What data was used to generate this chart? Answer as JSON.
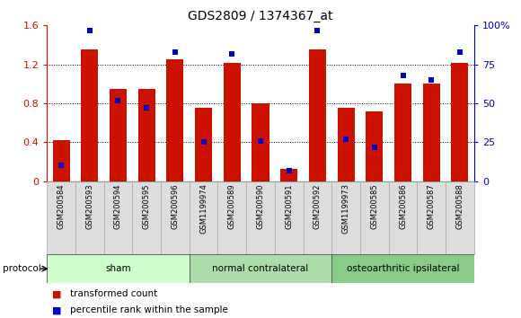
{
  "title": "GDS2809 / 1374367_at",
  "samples": [
    "GSM200584",
    "GSM200593",
    "GSM200594",
    "GSM200595",
    "GSM200596",
    "GSM1199974",
    "GSM200589",
    "GSM200590",
    "GSM200591",
    "GSM200592",
    "GSM1199973",
    "GSM200585",
    "GSM200586",
    "GSM200587",
    "GSM200588"
  ],
  "transformed_count": [
    0.42,
    1.35,
    0.95,
    0.95,
    1.25,
    0.75,
    1.22,
    0.8,
    0.13,
    1.35,
    0.75,
    0.72,
    1.0,
    1.0,
    1.22
  ],
  "percentile_rank": [
    10,
    97,
    52,
    47,
    83,
    25,
    82,
    26,
    7,
    97,
    27,
    22,
    68,
    65,
    83
  ],
  "groups": [
    {
      "label": "sham",
      "start": 0,
      "end": 5,
      "color": "#ccffcc"
    },
    {
      "label": "normal contralateral",
      "start": 5,
      "end": 10,
      "color": "#aaddaa"
    },
    {
      "label": "osteoarthritic ipsilateral",
      "start": 10,
      "end": 15,
      "color": "#88cc88"
    }
  ],
  "bar_color": "#cc1100",
  "percentile_color": "#0000cc",
  "ylim_left": [
    0,
    1.6
  ],
  "ylim_right": [
    0,
    100
  ],
  "yticks_left": [
    0,
    0.4,
    0.8,
    1.2,
    1.6
  ],
  "ytick_labels_left": [
    "0",
    "0.4",
    "0.8",
    "1.2",
    "1.6"
  ],
  "yticks_right": [
    0,
    25,
    50,
    75,
    100
  ],
  "ytick_labels_right": [
    "0",
    "25",
    "50",
    "75",
    "100%"
  ],
  "background_color": "#ffffff",
  "bar_width": 0.6,
  "protocol_label": "protocol",
  "legend_items": [
    "transformed count",
    "percentile rank within the sample"
  ]
}
